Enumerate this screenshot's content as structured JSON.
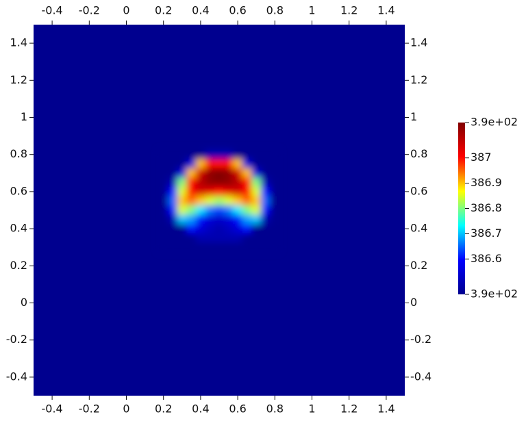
{
  "chart_data": {
    "type": "heatmap",
    "xlim": [
      -0.5,
      1.5
    ],
    "ylim": [
      -0.5,
      1.5
    ],
    "xticks": [
      -0.4,
      -0.2,
      0,
      0.2,
      0.4,
      0.6,
      0.8,
      1,
      1.2,
      1.4
    ],
    "yticks": [
      -0.4,
      -0.2,
      0,
      0.2,
      0.4,
      0.6,
      0.8,
      1,
      1.2,
      1.4
    ],
    "x": [
      0.2,
      0.25,
      0.3,
      0.35,
      0.4,
      0.45,
      0.5,
      0.55,
      0.6,
      0.65,
      0.7,
      0.75,
      0.8
    ],
    "y": [
      0.8,
      0.75,
      0.7,
      0.65,
      0.6,
      0.55,
      0.5,
      0.45,
      0.4,
      0.35,
      0.3
    ],
    "fill_value": 386.46,
    "z": [
      [
        386.46,
        386.46,
        386.46,
        386.46,
        386.46,
        386.5,
        386.5,
        386.5,
        386.46,
        386.46,
        386.46,
        386.46,
        386.46
      ],
      [
        386.46,
        386.46,
        386.46,
        386.55,
        386.9,
        387.0,
        387.0,
        387.0,
        386.9,
        386.55,
        386.46,
        386.46,
        386.46
      ],
      [
        386.46,
        386.46,
        386.55,
        386.9,
        387.05,
        387.12,
        387.14,
        387.12,
        387.05,
        386.9,
        386.55,
        386.46,
        386.46
      ],
      [
        386.46,
        386.5,
        386.8,
        387.0,
        387.08,
        387.12,
        387.13,
        387.12,
        387.08,
        387.0,
        386.8,
        386.5,
        386.46
      ],
      [
        386.46,
        386.6,
        386.85,
        387.0,
        387.05,
        387.03,
        387.0,
        387.03,
        387.05,
        387.0,
        386.85,
        386.6,
        386.46
      ],
      [
        386.46,
        386.65,
        386.9,
        386.95,
        386.9,
        386.85,
        386.82,
        386.85,
        386.9,
        386.95,
        386.9,
        386.65,
        386.46
      ],
      [
        386.46,
        386.6,
        386.85,
        386.8,
        386.72,
        386.66,
        386.63,
        386.66,
        386.72,
        386.8,
        386.85,
        386.6,
        386.46
      ],
      [
        386.46,
        386.5,
        386.7,
        386.68,
        386.6,
        386.55,
        386.53,
        386.55,
        386.6,
        386.68,
        386.7,
        386.5,
        386.46
      ],
      [
        386.46,
        386.46,
        386.46,
        386.6,
        386.55,
        386.52,
        386.5,
        386.52,
        386.55,
        386.6,
        386.46,
        386.46,
        386.46
      ],
      [
        386.46,
        386.46,
        386.46,
        386.46,
        386.5,
        386.5,
        386.5,
        386.5,
        386.5,
        386.46,
        386.46,
        386.46,
        386.46
      ],
      [
        386.46,
        386.46,
        386.46,
        386.46,
        386.46,
        386.46,
        386.46,
        386.46,
        386.46,
        386.46,
        386.46,
        386.46,
        386.46
      ]
    ],
    "colormap": [
      "#00008f",
      "#0000ff",
      "#00ffff",
      "#ffff00",
      "#ff0000",
      "#800000"
    ],
    "clim": [
      386.46,
      387.14
    ],
    "cticks": [
      {
        "value": 387.14,
        "label": "3.9e+02"
      },
      387,
      386.9,
      386.8,
      386.7,
      386.6,
      {
        "value": 386.46,
        "label": "3.9e+02"
      }
    ]
  }
}
